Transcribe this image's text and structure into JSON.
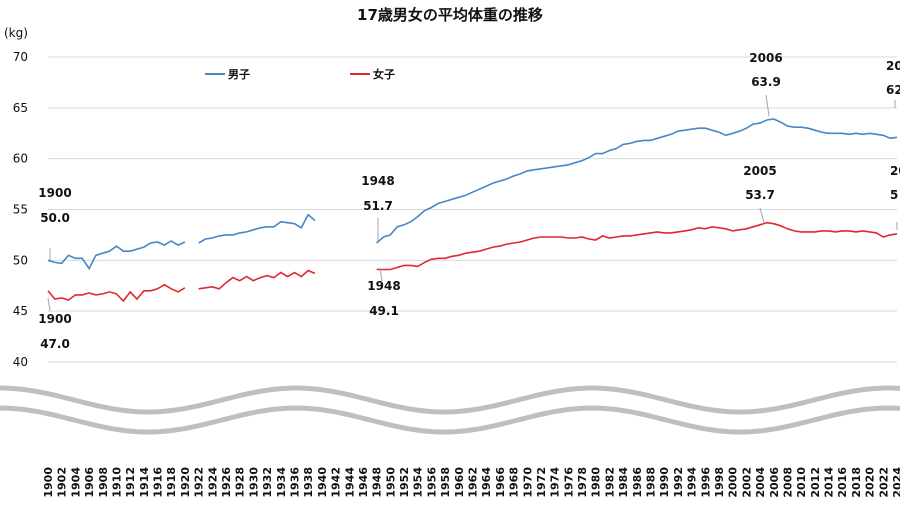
{
  "chart_data": {
    "type": "line",
    "title": "17歳男女の平均体重の推移",
    "ylabel": "(kg)",
    "ylim": [
      40,
      70
    ],
    "yticks": [
      "40",
      "45",
      "50",
      "55",
      "60",
      "65",
      "70"
    ],
    "xlim": [
      1900,
      2024
    ],
    "xticks": [
      "1900",
      "1902",
      "1904",
      "1906",
      "1908",
      "1910",
      "1912",
      "1914",
      "1916",
      "1918",
      "1920",
      "1922",
      "1924",
      "1926",
      "1928",
      "1930",
      "1932",
      "1934",
      "1936",
      "1938",
      "1940",
      "1942",
      "1944",
      "1946",
      "1948",
      "1950",
      "1952",
      "1954",
      "1956",
      "1958",
      "1960",
      "1962",
      "1964",
      "1966",
      "1968",
      "1970",
      "1972",
      "1974",
      "1976",
      "1978",
      "1980",
      "1982",
      "1984",
      "1986",
      "1988",
      "1990",
      "1992",
      "1994",
      "1996",
      "1998",
      "2000",
      "2002",
      "2004",
      "2006",
      "2008",
      "2010",
      "2012",
      "2014",
      "2016",
      "2018",
      "2020",
      "2022",
      "2024"
    ],
    "grid": true,
    "legend": "top-left",
    "series": [
      {
        "name": "男子",
        "color": "#4a86c5",
        "x": [
          1900,
          1901,
          1902,
          1903,
          1904,
          1905,
          1906,
          1907,
          1908,
          1909,
          1910,
          1911,
          1912,
          1913,
          1914,
          1915,
          1916,
          1917,
          1918,
          1919,
          1920,
          null,
          1922,
          1923,
          1924,
          1925,
          1926,
          1927,
          1928,
          1929,
          1930,
          1931,
          1932,
          1933,
          1934,
          1935,
          1936,
          1937,
          1938,
          1939,
          null,
          1948,
          1949,
          1950,
          1951,
          1952,
          1953,
          1954,
          1955,
          1956,
          1957,
          1958,
          1959,
          1960,
          1961,
          1962,
          1963,
          1964,
          1965,
          1966,
          1967,
          1968,
          1969,
          1970,
          1971,
          1972,
          1973,
          1974,
          1975,
          1976,
          1977,
          1978,
          1979,
          1980,
          1981,
          1982,
          1983,
          1984,
          1985,
          1986,
          1987,
          1988,
          1989,
          1990,
          1991,
          1992,
          1993,
          1994,
          1995,
          1996,
          1997,
          1998,
          1999,
          2000,
          2001,
          2002,
          2003,
          2004,
          2005,
          2006,
          2007,
          2008,
          2009,
          2010,
          2011,
          2012,
          2013,
          2014,
          2015,
          2016,
          2017,
          2018,
          2019,
          2020,
          2021,
          2022,
          2023,
          2024
        ],
        "y": [
          50.0,
          49.8,
          49.7,
          50.5,
          50.2,
          50.2,
          49.2,
          50.5,
          50.7,
          50.9,
          51.4,
          50.9,
          50.9,
          51.1,
          51.3,
          51.7,
          51.8,
          51.5,
          51.9,
          51.5,
          51.8,
          null,
          51.7,
          52.1,
          52.2,
          52.4,
          52.5,
          52.5,
          52.7,
          52.8,
          53.0,
          53.2,
          53.3,
          53.3,
          53.8,
          53.7,
          53.6,
          53.2,
          54.5,
          53.9,
          null,
          51.7,
          52.3,
          52.5,
          53.3,
          53.5,
          53.8,
          54.3,
          54.9,
          55.2,
          55.6,
          55.8,
          56.0,
          56.2,
          56.4,
          56.7,
          57.0,
          57.3,
          57.6,
          57.8,
          58.0,
          58.3,
          58.5,
          58.8,
          58.9,
          59.0,
          59.1,
          59.2,
          59.3,
          59.4,
          59.6,
          59.8,
          60.1,
          60.5,
          60.5,
          60.8,
          61.0,
          61.4,
          61.5,
          61.7,
          61.8,
          61.8,
          62.0,
          62.2,
          62.4,
          62.7,
          62.8,
          62.9,
          63.0,
          63.0,
          62.8,
          62.6,
          62.3,
          62.5,
          62.7,
          63.0,
          63.4,
          63.5,
          63.8,
          63.9,
          63.6,
          63.2,
          63.1,
          63.1,
          63.0,
          62.8,
          62.6,
          62.5,
          62.5,
          62.5,
          62.4,
          62.5,
          62.4,
          62.5,
          62.4,
          62.3,
          62.0,
          62.1
        ]
      },
      {
        "name": "女子",
        "color": "#e0292f",
        "x": [
          1900,
          1901,
          1902,
          1903,
          1904,
          1905,
          1906,
          1907,
          1908,
          1909,
          1910,
          1911,
          1912,
          1913,
          1914,
          1915,
          1916,
          1917,
          1918,
          1919,
          1920,
          null,
          1922,
          1923,
          1924,
          1925,
          1926,
          1927,
          1928,
          1929,
          1930,
          1931,
          1932,
          1933,
          1934,
          1935,
          1936,
          1937,
          1938,
          1939,
          null,
          1948,
          1949,
          1950,
          1951,
          1952,
          1953,
          1954,
          1955,
          1956,
          1957,
          1958,
          1959,
          1960,
          1961,
          1962,
          1963,
          1964,
          1965,
          1966,
          1967,
          1968,
          1969,
          1970,
          1971,
          1972,
          1973,
          1974,
          1975,
          1976,
          1977,
          1978,
          1979,
          1980,
          1981,
          1982,
          1983,
          1984,
          1985,
          1986,
          1987,
          1988,
          1989,
          1990,
          1991,
          1992,
          1993,
          1994,
          1995,
          1996,
          1997,
          1998,
          1999,
          2000,
          2001,
          2002,
          2003,
          2004,
          2005,
          2006,
          2007,
          2008,
          2009,
          2010,
          2011,
          2012,
          2013,
          2014,
          2015,
          2016,
          2017,
          2018,
          2019,
          2020,
          2021,
          2022,
          2023,
          2024
        ],
        "y": [
          47.0,
          46.2,
          46.3,
          46.1,
          46.6,
          46.6,
          46.8,
          46.6,
          46.7,
          46.9,
          46.7,
          46.0,
          46.9,
          46.2,
          47.0,
          47.0,
          47.2,
          47.6,
          47.2,
          46.9,
          47.3,
          null,
          47.2,
          47.3,
          47.4,
          47.2,
          47.8,
          48.3,
          48.0,
          48.4,
          48.0,
          48.3,
          48.5,
          48.3,
          48.8,
          48.4,
          48.8,
          48.4,
          49.0,
          48.7,
          null,
          49.1,
          49.1,
          49.1,
          49.3,
          49.5,
          49.5,
          49.4,
          49.8,
          50.1,
          50.2,
          50.2,
          50.4,
          50.5,
          50.7,
          50.8,
          50.9,
          51.1,
          51.3,
          51.4,
          51.6,
          51.7,
          51.8,
          52.0,
          52.2,
          52.3,
          52.3,
          52.3,
          52.3,
          52.2,
          52.2,
          52.3,
          52.1,
          52.0,
          52.4,
          52.2,
          52.3,
          52.4,
          52.4,
          52.5,
          52.6,
          52.7,
          52.8,
          52.7,
          52.7,
          52.8,
          52.9,
          53.0,
          53.2,
          53.1,
          53.3,
          53.2,
          53.1,
          52.9,
          53.0,
          53.1,
          53.3,
          53.5,
          53.7,
          53.6,
          53.4,
          53.1,
          52.9,
          52.8,
          52.8,
          52.8,
          52.9,
          52.9,
          52.8,
          52.9,
          52.9,
          52.8,
          52.9,
          52.8,
          52.7,
          52.3,
          52.5,
          52.6
        ]
      }
    ],
    "annotations": [
      {
        "year": "1900",
        "value": "50.0"
      },
      {
        "year": "1900",
        "value": "47.0"
      },
      {
        "year": "1948",
        "value": "51.7"
      },
      {
        "year": "1948",
        "value": "49.1"
      },
      {
        "year": "2006",
        "value": "63.9"
      },
      {
        "year": "2005",
        "value": "53.7"
      },
      {
        "year": "20",
        "value": "62"
      },
      {
        "year": "20",
        "value": "5"
      }
    ]
  }
}
